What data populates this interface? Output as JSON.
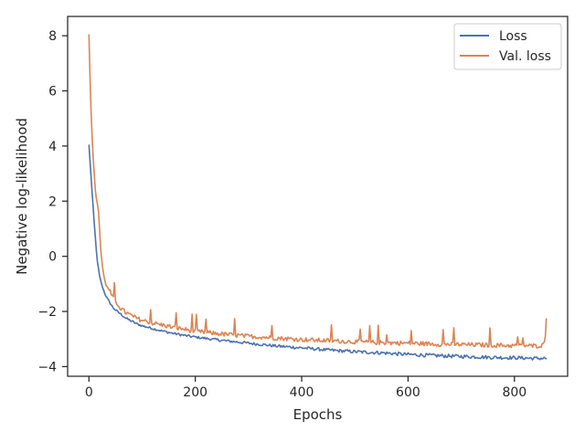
{
  "chart_data": {
    "type": "line",
    "title": "",
    "xlabel": "Epochs",
    "ylabel": "Negative log-likelihood",
    "xlim": [
      -40,
      900
    ],
    "ylim": [
      -4.35,
      8.7
    ],
    "x_ticks": [
      0,
      200,
      400,
      600,
      800
    ],
    "y_ticks": [
      -4,
      -2,
      0,
      2,
      4,
      6,
      8
    ],
    "x_tick_labels": [
      "0",
      "200",
      "400",
      "600",
      "800"
    ],
    "y_tick_labels": [
      "−4",
      "−2",
      "0",
      "2",
      "4",
      "6",
      "8"
    ],
    "grid": false,
    "legend_position": "top-right",
    "x_max_epoch": 860,
    "series": [
      {
        "name": "Loss",
        "color": "#4c72b0",
        "points": [
          [
            0,
            4.05
          ],
          [
            2,
            3.5
          ],
          [
            4,
            2.9
          ],
          [
            6,
            2.3
          ],
          [
            8,
            1.8
          ],
          [
            10,
            1.2
          ],
          [
            12,
            0.7
          ],
          [
            14,
            0.2
          ],
          [
            16,
            -0.2
          ],
          [
            18,
            -0.45
          ],
          [
            20,
            -0.7
          ],
          [
            23,
            -0.95
          ],
          [
            26,
            -1.15
          ],
          [
            30,
            -1.35
          ],
          [
            35,
            -1.55
          ],
          [
            40,
            -1.7
          ],
          [
            45,
            -1.85
          ],
          [
            50,
            -1.95
          ],
          [
            60,
            -2.1
          ],
          [
            70,
            -2.25
          ],
          [
            80,
            -2.35
          ],
          [
            90,
            -2.45
          ],
          [
            100,
            -2.52
          ],
          [
            120,
            -2.62
          ],
          [
            140,
            -2.72
          ],
          [
            160,
            -2.8
          ],
          [
            180,
            -2.87
          ],
          [
            200,
            -2.93
          ],
          [
            250,
            -3.05
          ],
          [
            300,
            -3.15
          ],
          [
            350,
            -3.25
          ],
          [
            400,
            -3.32
          ],
          [
            450,
            -3.4
          ],
          [
            500,
            -3.46
          ],
          [
            550,
            -3.5
          ],
          [
            600,
            -3.56
          ],
          [
            650,
            -3.6
          ],
          [
            700,
            -3.63
          ],
          [
            750,
            -3.66
          ],
          [
            800,
            -3.68
          ],
          [
            840,
            -3.7
          ],
          [
            860,
            -3.7
          ]
        ]
      },
      {
        "name": "Val. loss",
        "color": "#dd8452",
        "points": [
          [
            0,
            8.05
          ],
          [
            2,
            6.6
          ],
          [
            4,
            5.3
          ],
          [
            6,
            4.3
          ],
          [
            8,
            3.6
          ],
          [
            10,
            3.0
          ],
          [
            12,
            2.4
          ],
          [
            14,
            2.1
          ],
          [
            16,
            1.9
          ],
          [
            18,
            1.6
          ],
          [
            20,
            1.0
          ],
          [
            22,
            0.3
          ],
          [
            25,
            -0.3
          ],
          [
            28,
            -0.7
          ],
          [
            32,
            -1.05
          ],
          [
            36,
            -1.15
          ],
          [
            40,
            -1.3
          ],
          [
            45,
            -1.5
          ],
          [
            50,
            -1.65
          ],
          [
            55,
            -1.75
          ],
          [
            60,
            -1.9
          ],
          [
            70,
            -2.05
          ],
          [
            80,
            -2.15
          ],
          [
            90,
            -2.25
          ],
          [
            100,
            -2.32
          ],
          [
            120,
            -2.42
          ],
          [
            140,
            -2.5
          ],
          [
            160,
            -2.58
          ],
          [
            180,
            -2.65
          ],
          [
            200,
            -2.72
          ],
          [
            250,
            -2.82
          ],
          [
            300,
            -2.9
          ],
          [
            350,
            -2.96
          ],
          [
            400,
            -3.02
          ],
          [
            450,
            -3.06
          ],
          [
            500,
            -3.1
          ],
          [
            550,
            -3.13
          ],
          [
            600,
            -3.15
          ],
          [
            650,
            -3.18
          ],
          [
            700,
            -3.2
          ],
          [
            750,
            -3.22
          ],
          [
            800,
            -3.24
          ],
          [
            840,
            -3.25
          ],
          [
            855,
            -3.22
          ],
          [
            858,
            -2.9
          ],
          [
            860,
            -2.25
          ]
        ]
      }
    ]
  }
}
